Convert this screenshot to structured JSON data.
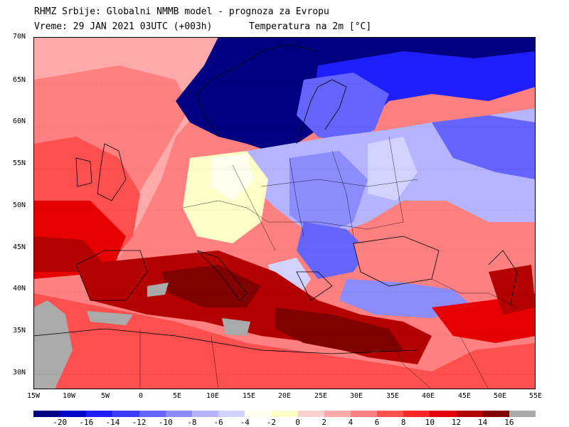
{
  "header": {
    "line1": "RHMZ Srbije: Globalni NMMB model - prognoza za Evropu",
    "line2": "Vreme: 29 JAN 2021 03UTC (+003h)",
    "line3": "Temperatura na 2m [°C]"
  },
  "map": {
    "lat_labels": [
      "70N",
      "65N",
      "60N",
      "55N",
      "50N",
      "45N",
      "40N",
      "35N",
      "30N"
    ],
    "lon_labels": [
      "15W",
      "10W",
      "5W",
      "0",
      "5E",
      "10E",
      "15E",
      "20E",
      "25E",
      "30E",
      "35E",
      "40E",
      "45E",
      "50E",
      "55E"
    ],
    "land_mask_color": "#aaaaaa",
    "border_color": "#000000"
  },
  "legend": {
    "colors": [
      "#000080",
      "#0000c8",
      "#1e1eff",
      "#3c3cff",
      "#6464ff",
      "#8c8cff",
      "#b4b4ff",
      "#d2d2ff",
      "#fffff0",
      "#ffffc8",
      "#ffd2d2",
      "#ffaaaa",
      "#ff8080",
      "#ff5050",
      "#ff2828",
      "#e60000",
      "#b40000",
      "#800000",
      "#aaaaaa"
    ],
    "labels": [
      "-20",
      "-16",
      "-14",
      "-12",
      "-10",
      "-8",
      "-6",
      "-4",
      "-2",
      "0",
      "2",
      "4",
      "6",
      "8",
      "10",
      "12",
      "14",
      "16"
    ]
  }
}
